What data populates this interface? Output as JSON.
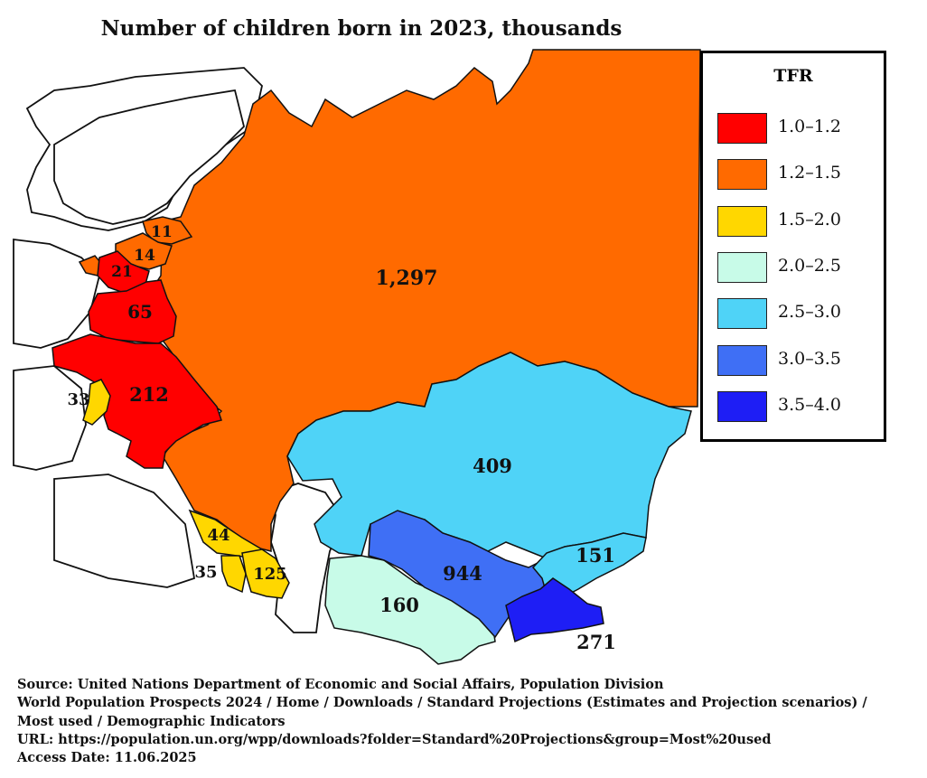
{
  "title": "Number of children born in 2023, thousands",
  "legend": {
    "title": "TFR",
    "items": [
      {
        "label": "1.0–1.2",
        "color": "#ff0000"
      },
      {
        "label": "1.2–1.5",
        "color": "#ff6a00"
      },
      {
        "label": "1.5–2.0",
        "color": "#ffd700"
      },
      {
        "label": "2.0–2.5",
        "color": "#c8fbe8"
      },
      {
        "label": "2.5–3.0",
        "color": "#4fd3f7"
      },
      {
        "label": "3.0–3.5",
        "color": "#3f6ff5"
      },
      {
        "label": "3.5–4.0",
        "color": "#1e1ef5"
      }
    ]
  },
  "regions": {
    "russia": {
      "value": "1,297",
      "color": "#ff6a00"
    },
    "kazakhstan": {
      "value": "409",
      "color": "#4fd3f7"
    },
    "uzbekistan": {
      "value": "944",
      "color": "#3f6ff5"
    },
    "turkmenistan": {
      "value": "160",
      "color": "#c8fbe8"
    },
    "kyrgyzstan": {
      "value": "151",
      "color": "#4fd3f7"
    },
    "tajikistan": {
      "value": "271",
      "color": "#1e1ef5"
    },
    "ukraine": {
      "value": "212",
      "color": "#ff0000"
    },
    "belarus": {
      "value": "65",
      "color": "#ff0000"
    },
    "lithuania": {
      "value": "21",
      "color": "#ff0000"
    },
    "latvia": {
      "value": "14",
      "color": "#ff6a00"
    },
    "estonia": {
      "value": "11",
      "color": "#ff6a00"
    },
    "moldova": {
      "value": "33",
      "color": "#ffd700"
    },
    "georgia": {
      "value": "44",
      "color": "#ffd700"
    },
    "armenia": {
      "value": "35",
      "color": "#ffd700"
    },
    "azerbaijan": {
      "value": "125",
      "color": "#ffd700"
    }
  },
  "source": {
    "line1": "Source: United Nations Department of Economic and Social Affairs, Population Division",
    "line2": "World Population Prospects 2024 / Home / Downloads / Standard Projections (Estimates and Projection scenarios) /",
    "line3": "Most used / Demographic Indicators",
    "line4": "URL: https://population.un.org/wpp/downloads?folder=Standard%20Projections&group=Most%20used",
    "line5": "Access Date: 11.06.2025"
  }
}
